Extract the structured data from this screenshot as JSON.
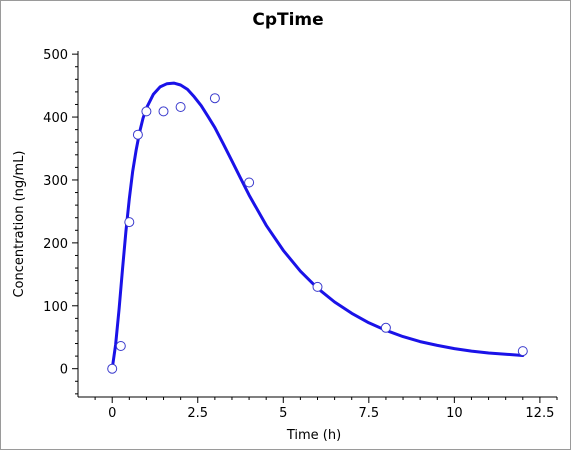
{
  "chart_data": {
    "type": "scatter",
    "title": "CpTime",
    "xlabel": "Time (h)",
    "ylabel": "Concentration (ng/mL)",
    "xlim": [
      -1,
      13
    ],
    "ylim": [
      -45,
      505
    ],
    "xticks": [
      0,
      2.5,
      5,
      7.5,
      10,
      12.5
    ],
    "xtick_labels": [
      "0",
      "2.5",
      "5",
      "7.5",
      "10",
      "12.5"
    ],
    "yticks": [
      0,
      100,
      200,
      300,
      400,
      500
    ],
    "ytick_labels": [
      "0",
      "100",
      "200",
      "300",
      "400",
      "500"
    ],
    "grid": false,
    "series": [
      {
        "kind": "points",
        "marker": "open-circle",
        "color": "#3a3acd",
        "x": [
          0,
          0.25,
          0.5,
          0.75,
          1,
          1.5,
          2,
          3,
          4,
          6,
          8,
          12
        ],
        "y": [
          0,
          36,
          233,
          372,
          409,
          409,
          416,
          430,
          296,
          130,
          65,
          28
        ]
      },
      {
        "kind": "line",
        "color": "#1a12e8",
        "x": [
          0,
          0.1,
          0.2,
          0.3,
          0.4,
          0.5,
          0.6,
          0.7,
          0.8,
          0.9,
          1.0,
          1.2,
          1.4,
          1.6,
          1.8,
          2.0,
          2.2,
          2.4,
          2.6,
          2.8,
          3.0,
          3.25,
          3.5,
          3.75,
          4.0,
          4.5,
          5.0,
          5.5,
          6.0,
          6.5,
          7.0,
          7.5,
          8.0,
          8.5,
          9.0,
          9.5,
          10.0,
          10.5,
          11.0,
          11.5,
          12.0
        ],
        "y": [
          0,
          38,
          95,
          158,
          218,
          270,
          314,
          348,
          376,
          398,
          414,
          436,
          448,
          453,
          454,
          451,
          444,
          432,
          418,
          401,
          383,
          357,
          330,
          303,
          276,
          228,
          188,
          155,
          128,
          106,
          88,
          73,
          61,
          51,
          43,
          37,
          32,
          28,
          25,
          23,
          21
        ]
      }
    ]
  }
}
